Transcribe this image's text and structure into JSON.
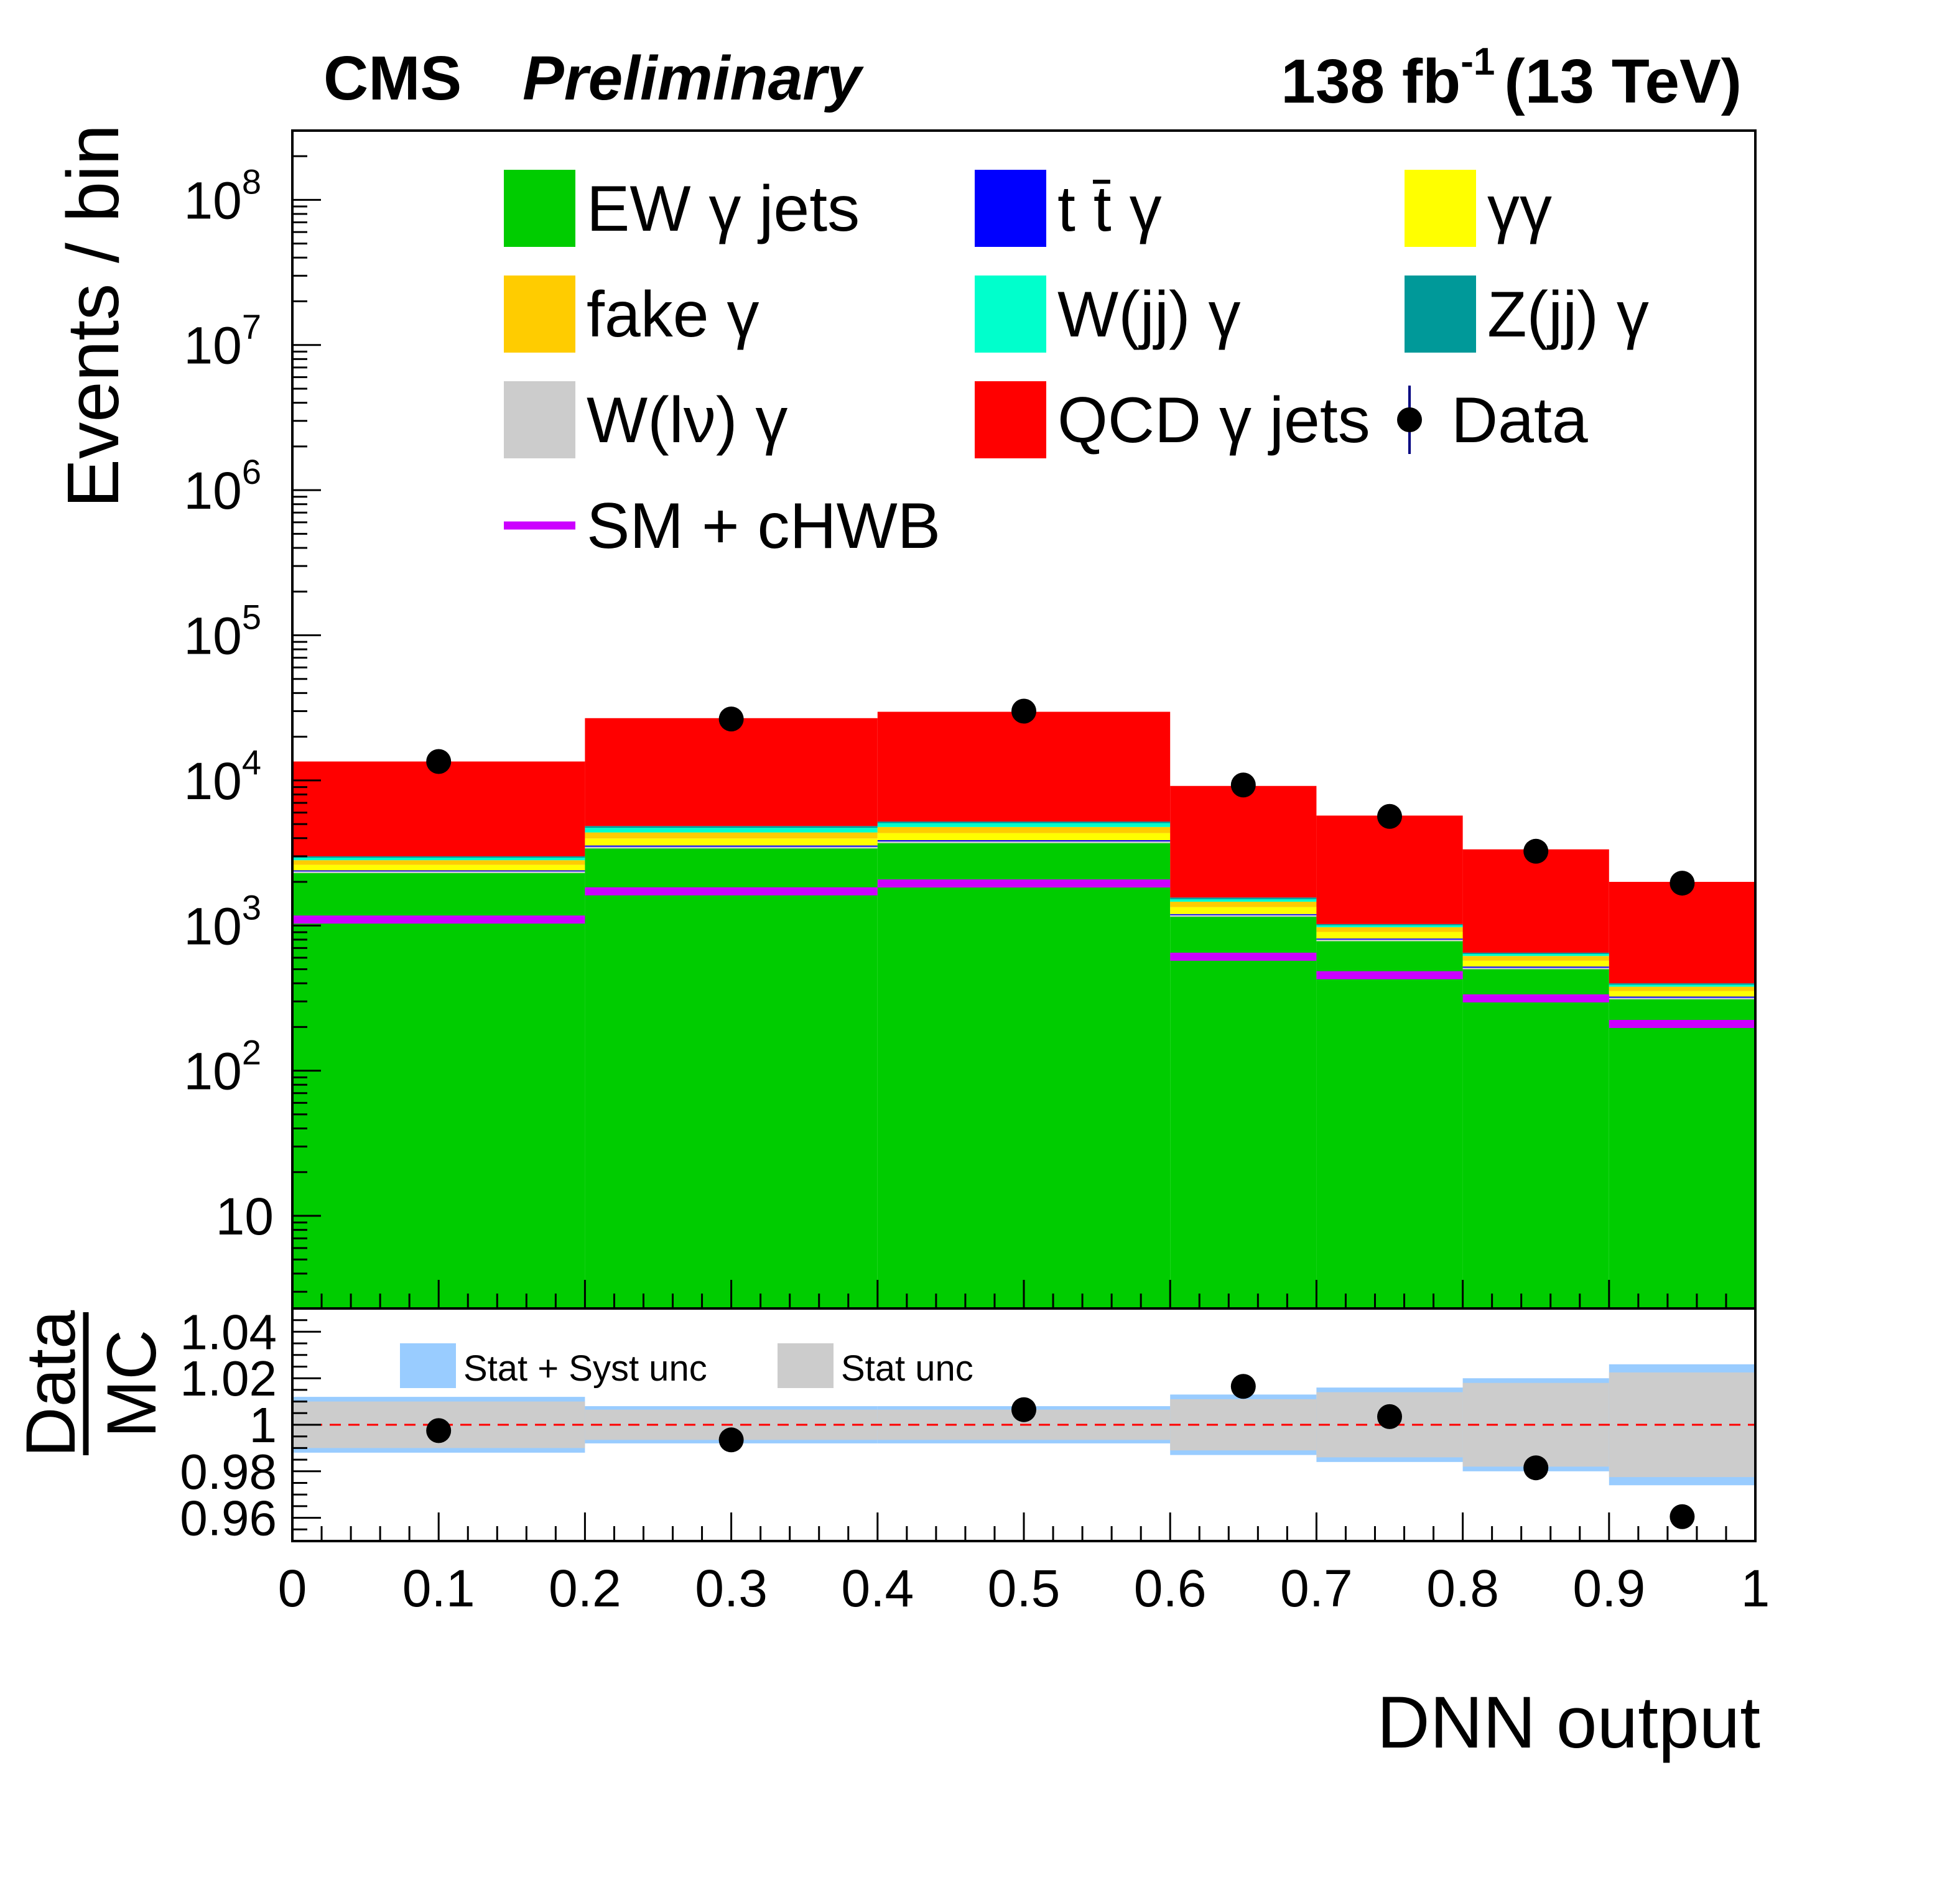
{
  "header": {
    "experiment": "CMS",
    "status": "Preliminary",
    "lumi_main": "138 fb",
    "lumi_sup": "-1",
    "energy": "(13 TeV)"
  },
  "chart_data": {
    "type": "bar",
    "subtype": "stacked-histogram-with-ratio",
    "xlabel": "DNN output",
    "ylabel": "Events / bin",
    "yscale": "log",
    "ylim": [
      2.3,
      300000000
    ],
    "xlim": [
      0,
      1
    ],
    "bins": [
      [
        0.0,
        0.2
      ],
      [
        0.2,
        0.4
      ],
      [
        0.4,
        0.6
      ],
      [
        0.6,
        0.7
      ],
      [
        0.7,
        0.8
      ],
      [
        0.8,
        0.9
      ],
      [
        0.9,
        1.0
      ]
    ],
    "bin_centers": [
      0.1,
      0.3,
      0.5,
      0.65,
      0.75,
      0.85,
      0.95
    ],
    "x_tick_labels": [
      "0",
      "0.1",
      "0.2",
      "0.3",
      "0.4",
      "0.5",
      "0.6",
      "0.7",
      "0.8",
      "0.9",
      "1"
    ],
    "x_tick_values": [
      0,
      0.1,
      0.2,
      0.3,
      0.4,
      0.5,
      0.6,
      0.7,
      0.8,
      0.9,
      1.0
    ],
    "y_tick_labels": [
      {
        "base": "10",
        "exp": "",
        "value": 10
      },
      {
        "base": "10",
        "exp": "2",
        "value": 100
      },
      {
        "base": "10",
        "exp": "3",
        "value": 1000
      },
      {
        "base": "10",
        "exp": "4",
        "value": 10000
      },
      {
        "base": "10",
        "exp": "5",
        "value": 100000
      },
      {
        "base": "10",
        "exp": "6",
        "value": 1000000
      },
      {
        "base": "10",
        "exp": "7",
        "value": 10000000
      },
      {
        "base": "10",
        "exp": "8",
        "value": 100000000
      }
    ],
    "stack_order_bottom_to_top": [
      "EW γ jets",
      "W(lν) γ",
      "t t̄ γ",
      "γγ",
      "fake γ",
      "W(jj) γ",
      "Z(jj) γ",
      "QCD γ jets"
    ],
    "series": [
      {
        "name": "EW γ jets",
        "color": "#00cc00",
        "values": [
          2300,
          3400,
          3700,
          1150,
          780,
          500,
          310
        ]
      },
      {
        "name": "W(lν) γ",
        "color": "#cccccc",
        "values": [
          60,
          90,
          100,
          30,
          20,
          12,
          8
        ]
      },
      {
        "name": "t t̄ γ",
        "color": "#0000ff",
        "values": [
          40,
          70,
          75,
          20,
          14,
          10,
          6
        ]
      },
      {
        "name": "γγ",
        "color": "#ffff00",
        "values": [
          220,
          420,
          460,
          140,
          90,
          50,
          30
        ]
      },
      {
        "name": "fake γ",
        "color": "#ffcc00",
        "values": [
          200,
          400,
          440,
          120,
          70,
          45,
          25
        ]
      },
      {
        "name": "W(jj) γ",
        "color": "#00ffcc",
        "values": [
          110,
          330,
          300,
          60,
          30,
          20,
          12
        ]
      },
      {
        "name": "Z(jj) γ",
        "color": "#009999",
        "values": [
          70,
          140,
          130,
          40,
          20,
          13,
          9
        ]
      },
      {
        "name": "QCD γ jets",
        "color": "#ff0000",
        "values": [
          10500,
          22000,
          24500,
          7600,
          4700,
          2700,
          1600
        ]
      }
    ],
    "sm_plus_chwb": {
      "name": "SM + cHWB",
      "color": "#cc00ff",
      "values": [
        1100,
        1720,
        1950,
        610,
        455,
        315,
        210
      ]
    },
    "data": {
      "name": "Data",
      "values": [
        13500,
        26500,
        30000,
        9300,
        5650,
        3250,
        1960
      ]
    },
    "ratio_panel": {
      "ylabel_numerator": "Data",
      "ylabel_denominator": "MC",
      "ylim": [
        0.95,
        1.05
      ],
      "y_tick_labels": [
        "0.96",
        "0.98",
        "1",
        "1.02",
        "1.04"
      ],
      "y_tick_values": [
        0.96,
        0.98,
        1.0,
        1.02,
        1.04
      ],
      "data_ratio": [
        0.9975,
        0.9935,
        1.0065,
        1.0165,
        1.0035,
        0.9815,
        0.9605
      ],
      "stat_syst_unc": [
        0.012,
        0.008,
        0.008,
        0.013,
        0.016,
        0.02,
        0.026
      ],
      "stat_unc": [
        0.01,
        0.0065,
        0.0065,
        0.011,
        0.014,
        0.018,
        0.0225
      ],
      "stat_syst_color": "#99ccff",
      "stat_color": "#cccccc",
      "reference_line_color": "#ff0000",
      "legend": {
        "stat_syst": "Stat + Syst unc",
        "stat": "Stat unc"
      }
    },
    "legend": [
      {
        "label": "EW γ jets",
        "color": "#00cc00",
        "kind": "box"
      },
      {
        "label": "t t̄ γ",
        "color": "#0000ff",
        "kind": "box"
      },
      {
        "label": "γγ",
        "color": "#ffff00",
        "kind": "box"
      },
      {
        "label": "fake γ",
        "color": "#ffcc00",
        "kind": "box"
      },
      {
        "label": "W(jj) γ",
        "color": "#00ffcc",
        "kind": "box"
      },
      {
        "label": "Z(jj) γ",
        "color": "#009999",
        "kind": "box"
      },
      {
        "label": "W(lν) γ",
        "color": "#cccccc",
        "kind": "box"
      },
      {
        "label": "QCD γ jets",
        "color": "#ff0000",
        "kind": "box"
      },
      {
        "label": "Data",
        "color": "#000000",
        "kind": "marker"
      },
      {
        "label": "SM + cHWB",
        "color": "#cc00ff",
        "kind": "line"
      }
    ],
    "legend_placement": "top"
  }
}
